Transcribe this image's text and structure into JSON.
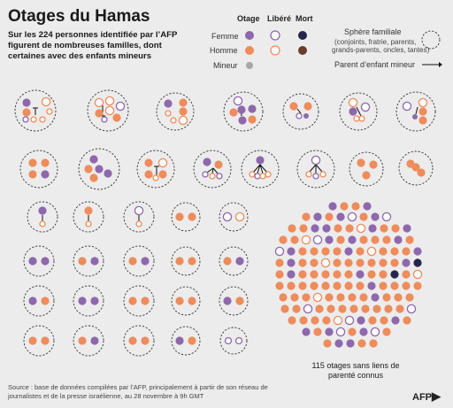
{
  "title": "Otages du Hamas",
  "subtitle": "Sur les 224 personnes identifiée par l’AFP figurent de nombreuses familles, dont certaines avec des enfants mineurs",
  "legend": {
    "col_otage": "Otage",
    "col_libere": "Libéré",
    "col_mort": "Mort",
    "row_femme": "Femme",
    "row_homme": "Homme",
    "row_mineur": "Mineur",
    "sphere_title": "Sphère familiale",
    "sphere_desc1": "(conjoints, fratrie, parents,",
    "sphere_desc2": "grands-parents, oncles, tantes)",
    "parent_label": "Parent d’enfant mineur"
  },
  "colors": {
    "femme_otage": "#8e68ad",
    "homme_otage": "#ee8c5c",
    "femme_mort": "#26264a",
    "homme_mort": "#6b3b2c",
    "mineur": "#a8a8a8",
    "background": "#ececec"
  },
  "cluster_note": "115 otages sans liens de parenté connus",
  "source": "Source : base de données compilées par l’AFP, principalement à partir de son réseau de journalistes et de la presse israélienne, au 28 novembre à 9h GMT",
  "logo": "AFP",
  "logo_icon": "afp-logo-icon"
}
